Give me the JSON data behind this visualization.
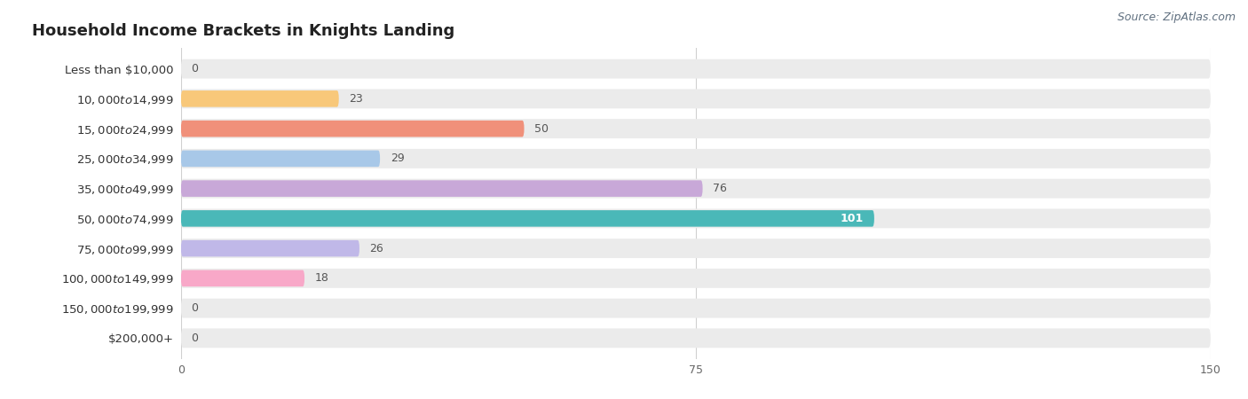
{
  "title": "Household Income Brackets in Knights Landing",
  "source": "Source: ZipAtlas.com",
  "categories": [
    "Less than $10,000",
    "$10,000 to $14,999",
    "$15,000 to $24,999",
    "$25,000 to $34,999",
    "$35,000 to $49,999",
    "$50,000 to $74,999",
    "$75,000 to $99,999",
    "$100,000 to $149,999",
    "$150,000 to $199,999",
    "$200,000+"
  ],
  "values": [
    0,
    23,
    50,
    29,
    76,
    101,
    26,
    18,
    0,
    0
  ],
  "bar_colors": [
    "#f2a0b3",
    "#f8c87a",
    "#f0907a",
    "#a8c8e8",
    "#c8a8d8",
    "#4ab8b8",
    "#c0b8e8",
    "#f8a8c8",
    "#f8c87a",
    "#f2b0a0"
  ],
  "background_color": "#ffffff",
  "bar_background_color": "#ebebeb",
  "xlim": [
    0,
    150
  ],
  "xticks": [
    0,
    75,
    150
  ],
  "title_fontsize": 13,
  "label_fontsize": 9.5,
  "value_fontsize": 9,
  "source_fontsize": 9
}
